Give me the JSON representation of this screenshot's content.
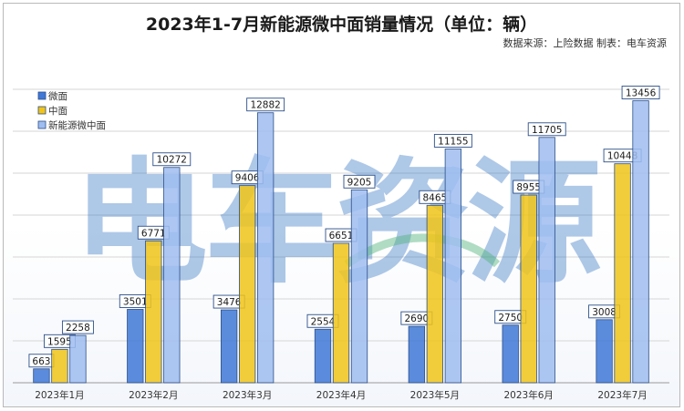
{
  "chart_data": {
    "type": "bar",
    "title": "2023年1-7月新能源微中面销量情况（单位：辆）",
    "source": "数据来源：上险数据 制表：电车资源",
    "watermark": "电车资源",
    "categories": [
      "2023年1月",
      "2023年2月",
      "2023年3月",
      "2023年4月",
      "2023年5月",
      "2023年6月",
      "2023年7月"
    ],
    "series": [
      {
        "name": "微面",
        "values": [
          663,
          3501,
          3476,
          2554,
          2690,
          2750,
          3008
        ],
        "color": "#3f78d6"
      },
      {
        "name": "中面",
        "values": [
          1595,
          6771,
          9406,
          6651,
          8465,
          8955,
          10448
        ],
        "color": "#f0c419"
      },
      {
        "name": "新能源微中面",
        "values": [
          2258,
          10272,
          12882,
          9205,
          11155,
          11705,
          13456
        ],
        "color": "#9fbdf0"
      }
    ],
    "ylim": [
      0,
      16000
    ],
    "grid": true,
    "legend_position": "top-left",
    "data_labels": true
  }
}
